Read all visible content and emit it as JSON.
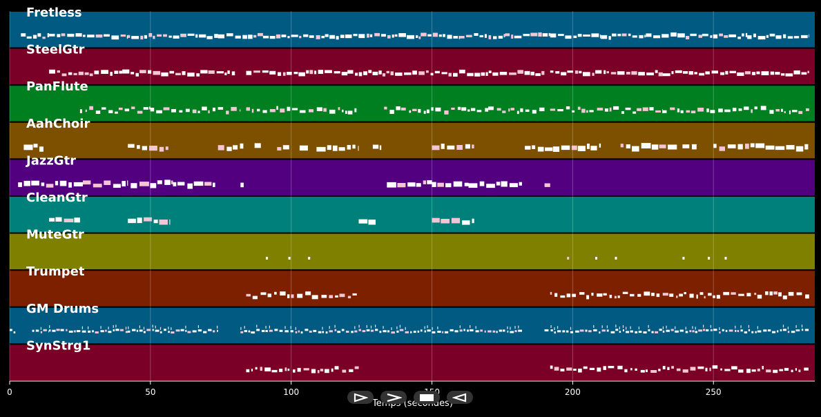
{
  "chart_data": {
    "type": "piano-roll",
    "xlabel": "Temps (secondes)",
    "xlim": [
      0,
      286
    ],
    "xticks": [
      0,
      50,
      100,
      150,
      200,
      250
    ],
    "grid": true,
    "tracks": [
      {
        "name": "Fretless",
        "color": "#005a82",
        "density": "high",
        "segments": [
          [
            4,
            14
          ],
          [
            14,
            26
          ],
          [
            26,
            42
          ],
          [
            42,
            58
          ],
          [
            58,
            74
          ],
          [
            74,
            90
          ],
          [
            90,
            112
          ],
          [
            112,
            128
          ],
          [
            128,
            146
          ],
          [
            146,
            160
          ],
          [
            160,
            176
          ],
          [
            176,
            192
          ],
          [
            192,
            210
          ],
          [
            210,
            226
          ],
          [
            226,
            246
          ],
          [
            246,
            262
          ],
          [
            262,
            284
          ]
        ]
      },
      {
        "name": "SteelGtr",
        "color": "#7a0028",
        "density": "high",
        "segments": [
          [
            14,
            40
          ],
          [
            40,
            80
          ],
          [
            84,
            120
          ],
          [
            120,
            190
          ],
          [
            192,
            232
          ],
          [
            232,
            284
          ]
        ]
      },
      {
        "name": "PanFlute",
        "color": "#007f20",
        "density": "medium",
        "segments": [
          [
            25,
            50
          ],
          [
            50,
            82
          ],
          [
            84,
            124
          ],
          [
            133,
            170
          ],
          [
            170,
            190
          ],
          [
            192,
            232
          ],
          [
            232,
            284
          ]
        ]
      },
      {
        "name": "AahChoir",
        "color": "#7d5000",
        "density": "low",
        "segments": [
          [
            5,
            12
          ],
          [
            42,
            57
          ],
          [
            74,
            83
          ],
          [
            87,
            90
          ],
          [
            95,
            100
          ],
          [
            103,
            106
          ],
          [
            109,
            124
          ],
          [
            129,
            132
          ],
          [
            150,
            165
          ],
          [
            183,
            193
          ],
          [
            193,
            210
          ],
          [
            217,
            237
          ],
          [
            239,
            244
          ],
          [
            250,
            284
          ]
        ]
      },
      {
        "name": "JazzGtr",
        "color": "#520080",
        "density": "low",
        "segments": [
          [
            3,
            26
          ],
          [
            26,
            42
          ],
          [
            43,
            58
          ],
          [
            58,
            73
          ],
          [
            82,
            84
          ],
          [
            134,
            150
          ],
          [
            150,
            163
          ],
          [
            163,
            182
          ],
          [
            190,
            192
          ]
        ]
      },
      {
        "name": "CleanGtr",
        "color": "#00807a",
        "density": "low",
        "segments": [
          [
            14,
            25
          ],
          [
            42,
            57
          ],
          [
            124,
            130
          ],
          [
            150,
            165
          ]
        ]
      },
      {
        "name": "MuteGtr",
        "color": "#7f7f00",
        "density": "sparse",
        "segments": [
          [
            91,
            92
          ],
          [
            99,
            100
          ],
          [
            106,
            107
          ],
          [
            198,
            200
          ],
          [
            208,
            209
          ],
          [
            215,
            216
          ],
          [
            239,
            240
          ],
          [
            248,
            249
          ],
          [
            254,
            255
          ]
        ]
      },
      {
        "name": "Trumpet",
        "color": "#7d2000",
        "density": "medium",
        "segments": [
          [
            84,
            124
          ],
          [
            192,
            232
          ],
          [
            232,
            284
          ]
        ]
      },
      {
        "name": "GM Drums",
        "color": "#005a82",
        "density": "drums",
        "segments": [
          [
            0,
            2
          ],
          [
            8,
            14
          ],
          [
            14,
            42
          ],
          [
            42,
            74
          ],
          [
            82,
            124
          ],
          [
            124,
            182
          ],
          [
            190,
            232
          ],
          [
            232,
            284
          ]
        ]
      },
      {
        "name": "SynStrg1",
        "color": "#7a0028",
        "density": "medium",
        "segments": [
          [
            84,
            124
          ],
          [
            192,
            232
          ],
          [
            232,
            284
          ]
        ]
      }
    ]
  },
  "controls": {
    "play_icon": "play-icon",
    "fast_forward_icon": "fast-forward-icon",
    "stop_icon": "stop-icon",
    "rewind_icon": "rewind-icon"
  }
}
